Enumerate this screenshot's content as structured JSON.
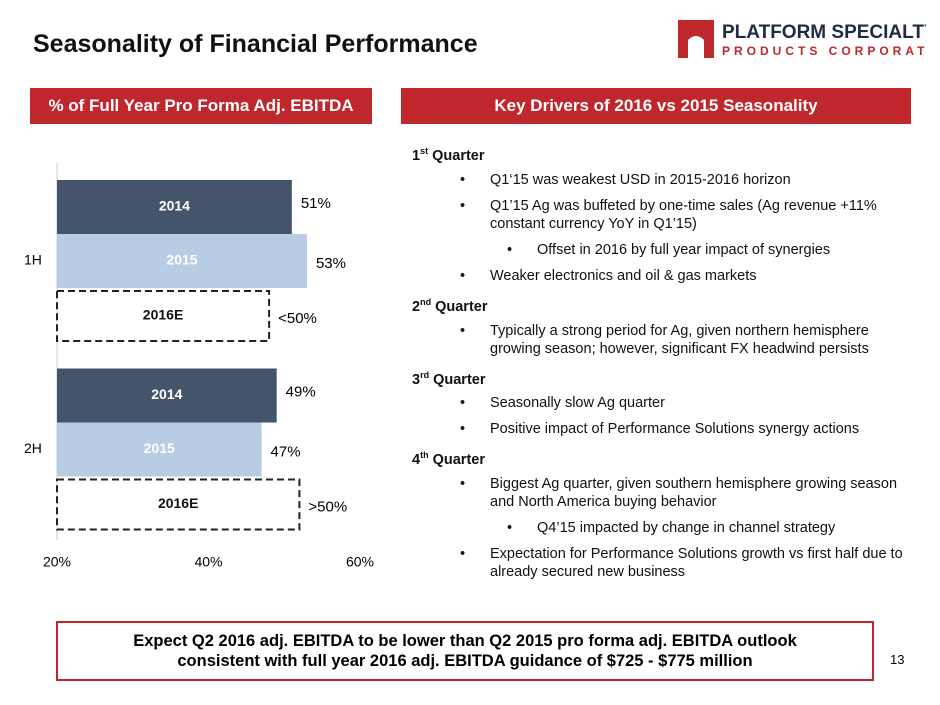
{
  "header": {
    "title": "Seasonality of Financial Performance",
    "logo_line1": "PLATFORM SPECIALTY",
    "logo_line2": "PRODUCTS CORPORATION"
  },
  "left_panel": {
    "title": "% of Full Year Pro Forma Adj. EBITDA"
  },
  "chart_data": {
    "type": "hbar",
    "categories": [
      "1H",
      "2H"
    ],
    "series": [
      {
        "name": "2014",
        "color": "#44546a",
        "values": [
          51,
          49
        ],
        "value_labels": [
          "51%",
          "49%"
        ]
      },
      {
        "name": "2015",
        "color": "#b8cce4",
        "values": [
          53,
          47
        ],
        "value_labels": [
          "53%",
          "47%"
        ]
      },
      {
        "name": "2016E",
        "color": "#ffffff",
        "style": "dashed",
        "values": [
          48,
          52
        ],
        "value_labels": [
          "<50%",
          ">50%"
        ]
      }
    ],
    "xlim": [
      20,
      60
    ],
    "xticks": [
      {
        "value": 20,
        "label": "20%"
      },
      {
        "value": 40,
        "label": "40%"
      },
      {
        "value": 60,
        "label": "60%"
      }
    ]
  },
  "right_panel": {
    "title": "Key Drivers of 2016 vs 2015 Seasonality",
    "sections": [
      {
        "number": "1",
        "suffix": "st",
        "label": "Quarter",
        "items": [
          {
            "level": 1,
            "text": "Q1‘15 was weakest USD in 2015-2016 horizon"
          },
          {
            "level": 1,
            "text": "Q1’15 Ag was buffeted by one-time sales (Ag revenue +11% constant currency YoY in Q1’15)"
          },
          {
            "level": 2,
            "text": "Offset in 2016 by full year impact of synergies"
          },
          {
            "level": 1,
            "text": "Weaker electronics and oil & gas markets"
          }
        ]
      },
      {
        "number": "2",
        "suffix": "nd",
        "label": "Quarter",
        "items": [
          {
            "level": 1,
            "text": "Typically a strong period for Ag, given northern hemisphere growing season; however, significant FX headwind persists"
          }
        ]
      },
      {
        "number": "3",
        "suffix": "rd",
        "label": "Quarter",
        "items": [
          {
            "level": 1,
            "text": "Seasonally slow Ag quarter"
          },
          {
            "level": 1,
            "text": "Positive impact of Performance Solutions synergy actions"
          }
        ]
      },
      {
        "number": "4",
        "suffix": "th",
        "label": "Quarter",
        "items": [
          {
            "level": 1,
            "text": "Biggest Ag quarter, given southern hemisphere growing season and North America buying behavior"
          },
          {
            "level": 2,
            "text": "Q4’15 impacted by change in channel strategy"
          },
          {
            "level": 1,
            "text": "Expectation for Performance Solutions growth vs first half due to already secured new business"
          }
        ]
      }
    ]
  },
  "footer": {
    "lines": [
      "Expect Q2 2016 adj. EBITDA to be lower than Q2 2015 pro forma adj. EBITDA outlook",
      "consistent with full year 2016 adj. EBITDA guidance of $725 - $775 million"
    ],
    "page": "13"
  }
}
